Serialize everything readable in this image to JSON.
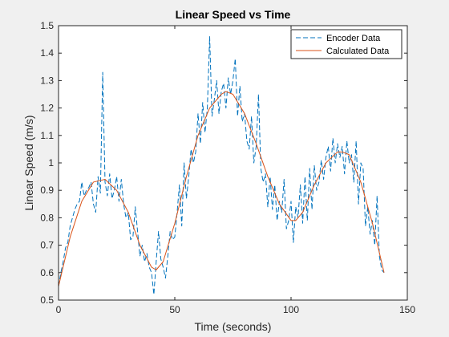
{
  "colors": {
    "encoder": "#0072BD",
    "calculated": "#D95319",
    "axis": "#262626",
    "figure_bg": "#f0f0f0",
    "plot_bg": "#ffffff"
  },
  "chart_data": {
    "type": "line",
    "title": "Linear Speed vs Time",
    "xlabel": "Time (seconds)",
    "ylabel": "Linear Speed (m/s)",
    "xlim": [
      0,
      150
    ],
    "ylim": [
      0.5,
      1.5
    ],
    "xticks": [
      "0",
      "50",
      "100",
      "150"
    ],
    "yticks": [
      "0.5",
      "0.6",
      "0.7",
      "0.8",
      "0.9",
      "1",
      "1.1",
      "1.2",
      "1.3",
      "1.4",
      "1.5"
    ],
    "grid": false,
    "legend_position": "top-right",
    "series": [
      {
        "name": "Encoder Data",
        "style": "dashed",
        "color": "#0072BD",
        "x": [
          0,
          1,
          2,
          3,
          4,
          5,
          6,
          7,
          8,
          9,
          10,
          11,
          12,
          13,
          14,
          15,
          16,
          17,
          18,
          19,
          20,
          21,
          22,
          23,
          24,
          25,
          26,
          27,
          28,
          29,
          30,
          31,
          32,
          33,
          34,
          35,
          36,
          37,
          38,
          39,
          40,
          41,
          42,
          43,
          44,
          45,
          46,
          47,
          48,
          49,
          50,
          51,
          52,
          53,
          54,
          55,
          56,
          57,
          58,
          59,
          60,
          61,
          62,
          63,
          64,
          65,
          66,
          67,
          68,
          69,
          70,
          71,
          72,
          73,
          74,
          75,
          76,
          77,
          78,
          79,
          80,
          81,
          82,
          83,
          84,
          85,
          86,
          87,
          88,
          89,
          90,
          91,
          92,
          93,
          94,
          95,
          96,
          97,
          98,
          99,
          100,
          101,
          102,
          103,
          104,
          105,
          106,
          107,
          108,
          109,
          110,
          111,
          112,
          113,
          114,
          115,
          116,
          117,
          118,
          119,
          120,
          121,
          122,
          123,
          124,
          125,
          126,
          127,
          128,
          129,
          130,
          131,
          132,
          133,
          134,
          135,
          136,
          137,
          138,
          139,
          140
        ],
        "y": [
          0.55,
          0.6,
          0.64,
          0.69,
          0.71,
          0.77,
          0.8,
          0.83,
          0.85,
          0.86,
          0.93,
          0.88,
          0.9,
          0.91,
          0.93,
          0.85,
          0.82,
          0.95,
          0.89,
          1.33,
          0.93,
          0.88,
          0.96,
          0.87,
          0.9,
          0.95,
          0.86,
          0.94,
          0.85,
          0.8,
          0.82,
          0.72,
          0.73,
          0.84,
          0.75,
          0.66,
          0.7,
          0.64,
          0.67,
          0.62,
          0.6,
          0.52,
          0.64,
          0.75,
          0.65,
          0.62,
          0.58,
          0.66,
          0.75,
          0.72,
          0.73,
          0.82,
          0.92,
          0.77,
          1.0,
          0.87,
          0.95,
          1.05,
          1.0,
          1.04,
          1.18,
          1.07,
          1.22,
          1.11,
          1.2,
          1.46,
          1.17,
          1.23,
          1.3,
          1.18,
          1.26,
          1.29,
          1.2,
          1.31,
          1.25,
          1.3,
          1.38,
          1.17,
          1.28,
          1.15,
          1.18,
          1.08,
          1.05,
          1.17,
          1.0,
          1.06,
          1.25,
          0.98,
          0.93,
          0.96,
          0.84,
          0.95,
          0.83,
          0.92,
          0.79,
          0.86,
          0.82,
          0.94,
          0.76,
          0.79,
          0.86,
          0.71,
          0.84,
          0.8,
          0.92,
          0.78,
          0.95,
          0.79,
          0.98,
          0.83,
          0.99,
          0.9,
          0.93,
          1.01,
          0.94,
          1.02,
          1.06,
          0.97,
          1.09,
          1.0,
          1.07,
          1.02,
          1.06,
          0.96,
          1.08,
          1.0,
          1.03,
          0.93,
          1.08,
          0.85,
          1.0,
          0.98,
          0.77,
          0.84,
          0.74,
          0.79,
          0.7,
          0.88,
          0.66,
          0.61,
          0.6
        ]
      },
      {
        "name": "Calculated Data",
        "style": "solid",
        "color": "#D95319",
        "x": [
          0,
          5,
          10,
          15,
          20,
          25,
          30,
          35,
          40,
          42,
          45,
          50,
          55,
          60,
          65,
          70,
          72,
          75,
          80,
          85,
          90,
          95,
          100,
          102,
          105,
          110,
          115,
          120,
          122,
          125,
          130,
          135,
          140
        ],
        "y": [
          0.55,
          0.73,
          0.86,
          0.93,
          0.94,
          0.9,
          0.82,
          0.7,
          0.62,
          0.61,
          0.64,
          0.78,
          0.95,
          1.1,
          1.2,
          1.25,
          1.26,
          1.25,
          1.18,
          1.07,
          0.95,
          0.85,
          0.79,
          0.79,
          0.82,
          0.92,
          1.0,
          1.04,
          1.04,
          1.03,
          0.93,
          0.78,
          0.6
        ]
      }
    ]
  }
}
